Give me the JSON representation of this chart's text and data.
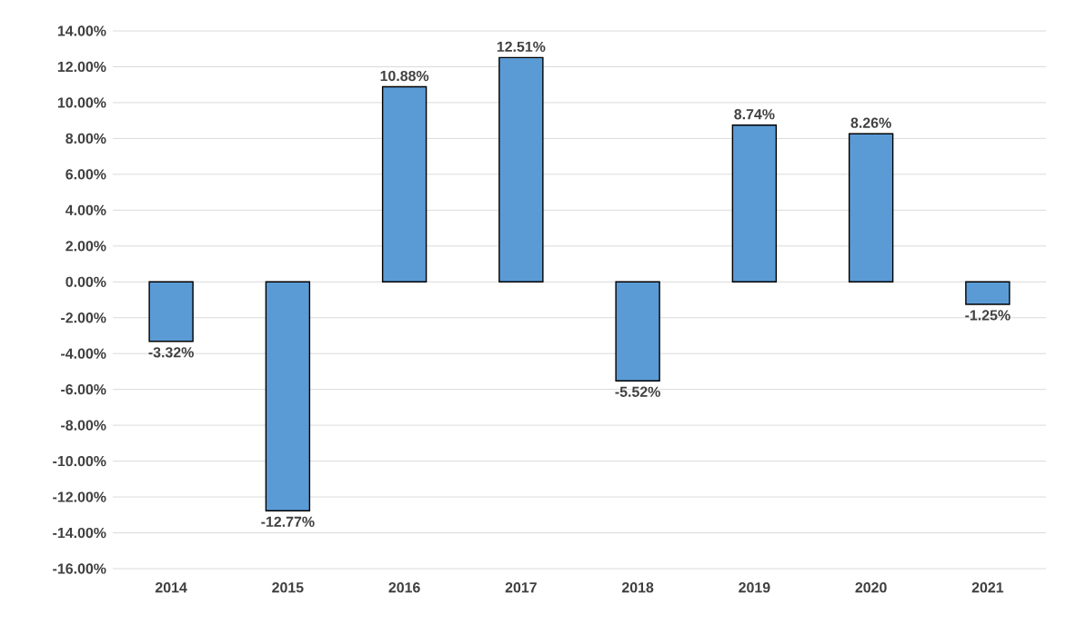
{
  "chart_data": {
    "type": "bar",
    "categories": [
      "2014",
      "2015",
      "2016",
      "2017",
      "2018",
      "2019",
      "2020",
      "2021"
    ],
    "values": [
      -3.32,
      -12.77,
      10.88,
      12.51,
      -5.52,
      8.74,
      8.26,
      -1.25
    ],
    "value_labels": [
      "-3.32%",
      "-12.77%",
      "10.88%",
      "12.51%",
      "-5.52%",
      "8.74%",
      "8.26%",
      "-1.25%"
    ],
    "color": "#5b9bd5",
    "ylim": [
      -16,
      14
    ],
    "yticks": [
      {
        "value": -16,
        "label": "-16.00%"
      },
      {
        "value": -14,
        "label": "-14.00%"
      },
      {
        "value": -12,
        "label": "-12.00%"
      },
      {
        "value": -10,
        "label": "-10.00%"
      },
      {
        "value": -8,
        "label": "-8.00%"
      },
      {
        "value": -6,
        "label": "-6.00%"
      },
      {
        "value": -4,
        "label": "-4.00%"
      },
      {
        "value": -2,
        "label": "-2.00%"
      },
      {
        "value": 0,
        "label": "0.00%"
      },
      {
        "value": 2,
        "label": "2.00%"
      },
      {
        "value": 4,
        "label": "4.00%"
      },
      {
        "value": 6,
        "label": "6.00%"
      },
      {
        "value": 8,
        "label": "8.00%"
      },
      {
        "value": 10,
        "label": "10.00%"
      },
      {
        "value": 12,
        "label": "12.00%"
      },
      {
        "value": 14,
        "label": "14.00%"
      }
    ],
    "grid": "y"
  }
}
